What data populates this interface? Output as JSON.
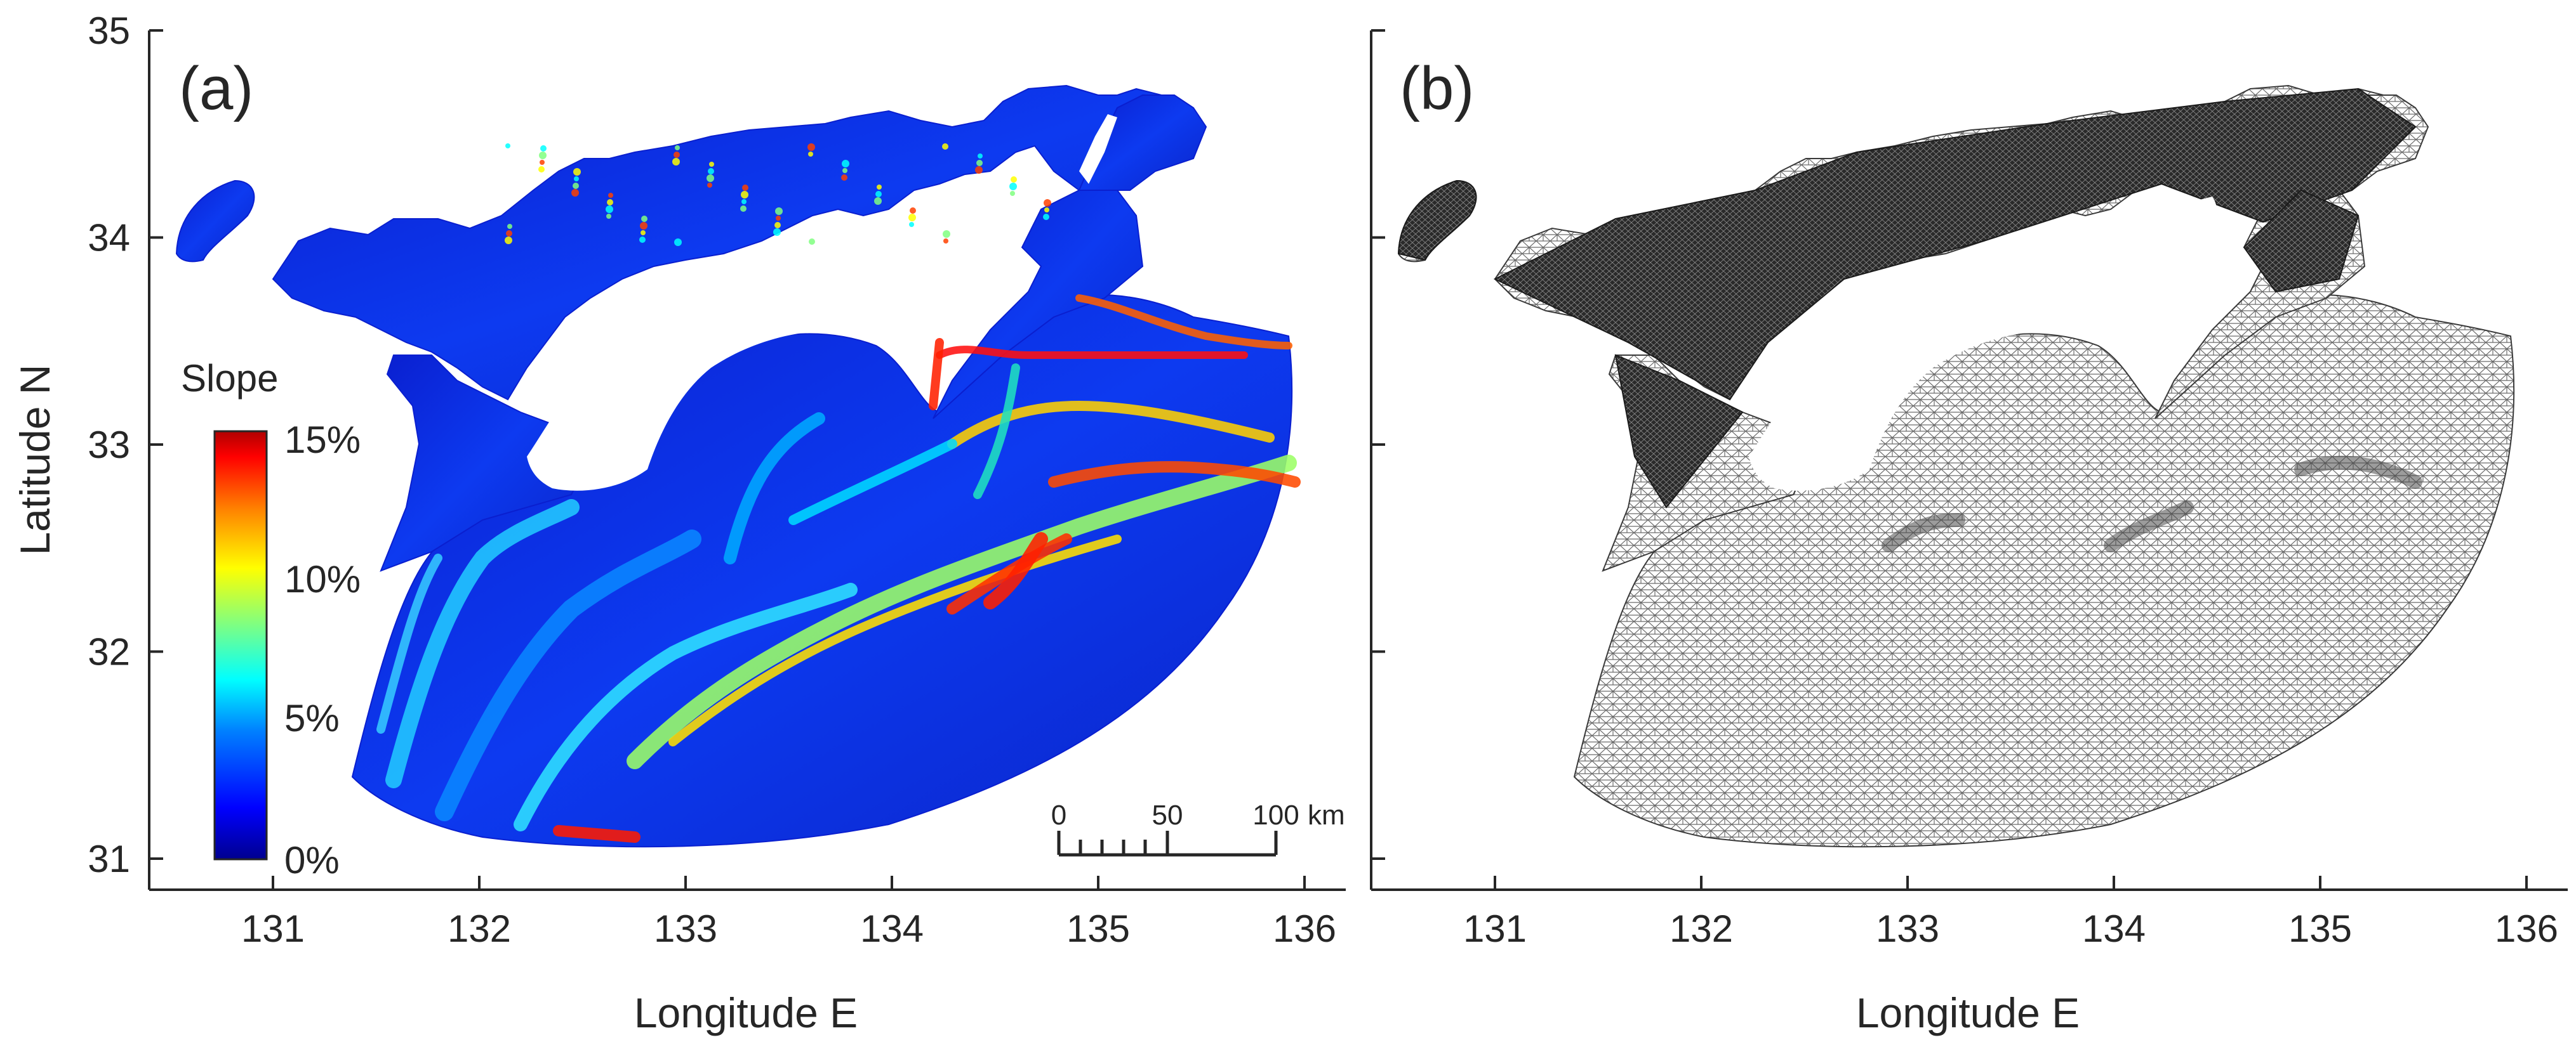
{
  "panels": [
    {
      "label": "(a)",
      "xlabel": "Longitude E",
      "ylabel": "Latitude N"
    },
    {
      "label": "(b)",
      "xlabel": "Longitude E"
    }
  ],
  "axes": {
    "xlim": [
      130.4,
      136.2
    ],
    "ylim": [
      30.85,
      35.0
    ],
    "xticks": [
      "131",
      "132",
      "133",
      "134",
      "135",
      "136"
    ],
    "yticks": [
      "31",
      "32",
      "33",
      "34",
      "35"
    ]
  },
  "colorbar": {
    "title": "Slope",
    "ticks": [
      "15%",
      "10%",
      "5%",
      "0%"
    ],
    "range": [
      0,
      15
    ],
    "colormap": [
      "#00008f",
      "#0000ff",
      "#0080ff",
      "#00ffff",
      "#80ff80",
      "#ffff00",
      "#ff8000",
      "#ff0000",
      "#800000"
    ]
  },
  "scalebar": {
    "ticks": [
      "0",
      "50",
      "100"
    ],
    "unit": "km"
  },
  "colors": {
    "sea_base": "#0a1fcf",
    "mesh_line": "#555555",
    "mesh_dense": "#1a1a1a",
    "axis": "#262626"
  }
}
